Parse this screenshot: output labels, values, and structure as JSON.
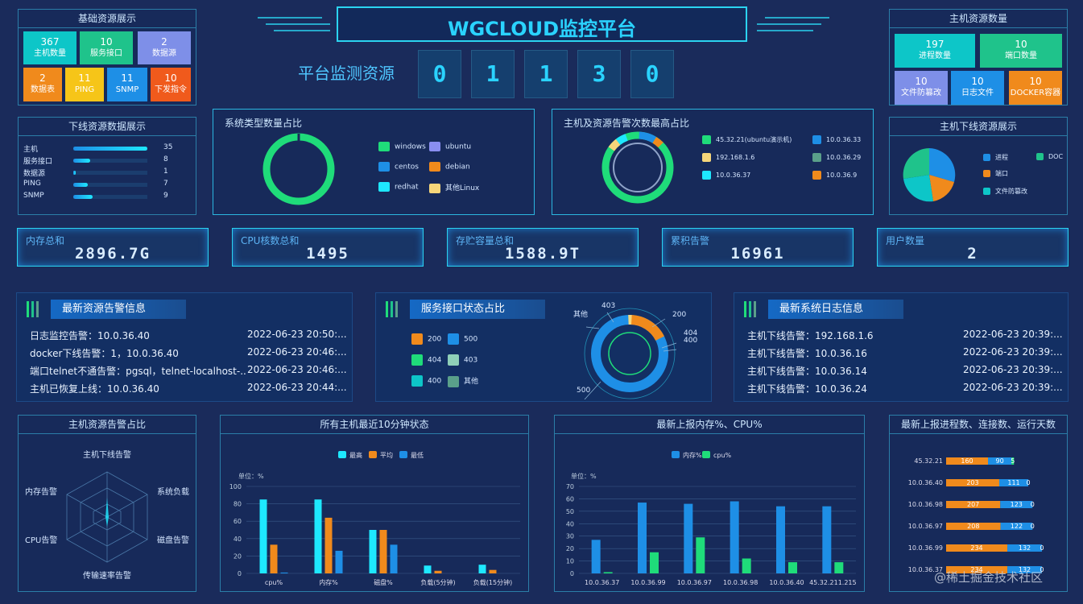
{
  "header": {
    "title": "WGCLOUD监控平台",
    "subtitle": "平台监测资源",
    "digits": [
      "0",
      "1",
      "1",
      "3",
      "0"
    ]
  },
  "basic": {
    "title": "基础资源展示",
    "tiles": [
      {
        "num": "367",
        "label": "主机数量",
        "color": "#0dc6c8"
      },
      {
        "num": "10",
        "label": "服务接口",
        "color": "#1fc38b"
      },
      {
        "num": "2",
        "label": "数据源",
        "color": "#7e8fe8"
      },
      {
        "num": "2",
        "label": "数据表",
        "color": "#f08a1c"
      },
      {
        "num": "11",
        "label": "PING",
        "color": "#f6c518"
      },
      {
        "num": "11",
        "label": "SNMP",
        "color": "#1e8fe6"
      },
      {
        "num": "10",
        "label": "下发指令",
        "color": "#f05a1c"
      }
    ]
  },
  "hostres": {
    "title": "主机资源数量",
    "tiles": [
      {
        "num": "197",
        "label": "进程数量",
        "color": "#0dc6c8"
      },
      {
        "num": "10",
        "label": "端口数量",
        "color": "#1fc38b"
      },
      {
        "num": "10",
        "label": "文件防篡改",
        "color": "#7e8fe8"
      },
      {
        "num": "10",
        "label": "日志文件",
        "color": "#1e8fe6"
      },
      {
        "num": "10",
        "label": "DOCKER容器",
        "color": "#f08a1c"
      }
    ]
  },
  "offline": {
    "title": "下线资源数据展示",
    "rows": [
      {
        "label": "主机",
        "value": "35",
        "frac": 1.0
      },
      {
        "label": "服务接口",
        "value": "8",
        "frac": 0.23
      },
      {
        "label": "数据源",
        "value": "1",
        "frac": 0.03
      },
      {
        "label": "PING",
        "value": "7",
        "frac": 0.2
      },
      {
        "label": "SNMP",
        "value": "9",
        "frac": 0.26
      }
    ]
  },
  "systype": {
    "title": "系统类型数量占比",
    "legend": [
      {
        "name": "windows",
        "color": "#1fdc7a"
      },
      {
        "name": "ubuntu",
        "color": "#8a8ef0"
      },
      {
        "name": "centos",
        "color": "#1e8fe6"
      },
      {
        "name": "debian",
        "color": "#f08a1c"
      },
      {
        "name": "redhat",
        "color": "#1ee8ff"
      },
      {
        "name": "其他Linux",
        "color": "#f6d67a"
      }
    ]
  },
  "alarmtop": {
    "title": "主机及资源告警次数最高占比",
    "legend": [
      {
        "name": "45.32.21",
        "suffix": "(ubuntu演示机)",
        "color": "#1fdc7a"
      },
      {
        "name": "10.0.36.33",
        "color": "#1e8fe6"
      },
      {
        "name": "192.168.1.6",
        "color": "#f6d67a"
      },
      {
        "name": "10.0.36.29",
        "color": "#5aa08a"
      },
      {
        "name": "10.0.36.37",
        "color": "#1ee8ff"
      },
      {
        "name": "10.0.36.9",
        "color": "#f08a1c"
      }
    ]
  },
  "hostoffline": {
    "title": "主机下线资源展示",
    "legend": [
      {
        "name": "进程",
        "color": "#1e8fe6"
      },
      {
        "name": "DOC",
        "color": "#1fc38b"
      },
      {
        "name": "端口",
        "color": "#f08a1c"
      },
      {
        "name": "文件防篡改",
        "color": "#0dc6c8"
      }
    ]
  },
  "stats": [
    {
      "label": "内存总和",
      "value": "2896.7G"
    },
    {
      "label": "CPU核数总和",
      "value": "1495"
    },
    {
      "label": "存贮容量总和",
      "value": "1588.9T"
    },
    {
      "label": "累积告警",
      "value": "16961"
    },
    {
      "label": "用户数量",
      "value": "2"
    }
  ],
  "latestAlarm": {
    "title": "最新资源告警信息",
    "rows": [
      {
        "msg": "日志监控告警：10.0.36.40",
        "time": "2022-06-23 20:50:..."
      },
      {
        "msg": "docker下线告警：1，10.0.36.40",
        "time": "2022-06-23 20:46:..."
      },
      {
        "msg": "端口telnet不通告警：pgsql，telnet-localhost-...",
        "time": "2022-06-23 20:46:..."
      },
      {
        "msg": "主机已恢复上线：10.0.36.40",
        "time": "2022-06-23 20:44:..."
      }
    ]
  },
  "svcStatus": {
    "title": "服务接口状态占比",
    "legend": [
      {
        "name": "200",
        "color": "#f08a1c"
      },
      {
        "name": "500",
        "color": "#1e8fe6"
      },
      {
        "name": "404",
        "color": "#1fdc7a"
      },
      {
        "name": "403",
        "color": "#8fd0b8"
      },
      {
        "name": "400",
        "color": "#0dc6c8"
      },
      {
        "name": "其他",
        "color": "#5aa08a"
      }
    ],
    "labels": {
      "l403": "403",
      "l200": "200",
      "l404": "404",
      "l400": "400",
      "other": "其他",
      "l500": "500"
    }
  },
  "syslog": {
    "title": "最新系统日志信息",
    "rows": [
      {
        "msg": "主机下线告警：192.168.1.6",
        "time": "2022-06-23 20:39:..."
      },
      {
        "msg": "主机下线告警：10.0.36.16",
        "time": "2022-06-23 20:39:..."
      },
      {
        "msg": "主机下线告警：10.0.36.14",
        "time": "2022-06-23 20:39:..."
      },
      {
        "msg": "主机下线告警：10.0.36.24",
        "time": "2022-06-23 20:39:..."
      }
    ]
  },
  "radar": {
    "title": "主机资源告警占比",
    "axes": [
      "主机下线告警",
      "系统负载",
      "磁盘告警",
      "传输速率告警",
      "CPU告警",
      "内存告警"
    ]
  },
  "chart_data": [
    {
      "type": "bar",
      "title": "所有主机最近10分钟状态",
      "ylabel": "单位：%",
      "ylim": [
        0,
        100
      ],
      "yticks": [
        "0",
        "20",
        "40",
        "60",
        "80",
        "100"
      ],
      "categories": [
        "cpu%",
        "内存%",
        "磁盘%",
        "负载(5分钟)",
        "负载(15分钟)"
      ],
      "series": [
        {
          "name": "最高",
          "color": "#1ee8ff",
          "values": [
            85,
            85,
            50,
            9,
            10
          ]
        },
        {
          "name": "平均",
          "color": "#f08a1c",
          "values": [
            33,
            64,
            50,
            3,
            4
          ]
        },
        {
          "name": "最低",
          "color": "#1e8fe6",
          "values": [
            1,
            26,
            33,
            0,
            0
          ]
        }
      ]
    },
    {
      "type": "bar",
      "title": "最新上报内存%、CPU%",
      "ylabel": "单位：%",
      "ylim": [
        0,
        70
      ],
      "yticks": [
        "0",
        "10",
        "20",
        "30",
        "40",
        "50",
        "60",
        "70"
      ],
      "categories": [
        "10.0.36.37",
        "10.0.36.99",
        "10.0.36.97",
        "10.0.36.98",
        "10.0.36.40",
        "45.32.211.215"
      ],
      "series": [
        {
          "name": "内存%",
          "color": "#1e8fe6",
          "values": [
            27,
            57,
            56,
            58,
            54,
            54
          ]
        },
        {
          "name": "cpu%",
          "color": "#1fdc7a",
          "values": [
            1,
            17,
            29,
            12,
            9,
            9
          ]
        }
      ]
    },
    {
      "type": "bar",
      "title": "最新上报进程数、连接数、运行天数",
      "categories": [
        "45.32.21",
        "10.0.36.40",
        "10.0.36.98",
        "10.0.36.97",
        "10.0.36.99",
        "10.0.36.37"
      ],
      "series": [
        {
          "name": "进程数",
          "color": "#f08a1c",
          "values": [
            160,
            203,
            207,
            208,
            234,
            234
          ]
        },
        {
          "name": "连接数",
          "color": "#1e8fe6",
          "values": [
            90,
            111,
            123,
            122,
            132,
            132
          ]
        },
        {
          "name": "运行天数",
          "color": "#1fdc7a",
          "values": [
            5,
            0,
            0,
            0,
            0,
            0
          ]
        }
      ]
    }
  ],
  "watermark": "@稀土掘金技术社区"
}
